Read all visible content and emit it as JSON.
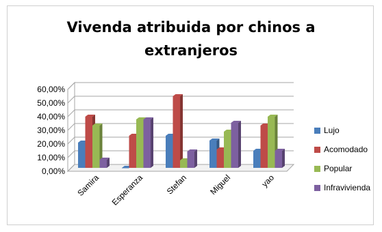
{
  "chart_data": {
    "type": "bar",
    "title_line1": "Vivenda atribuida por chinos a",
    "title_line2": "extranjeros",
    "categories": [
      "Samira",
      "Esperanza",
      "Stefan",
      "Miguel",
      "yao"
    ],
    "series": [
      {
        "name": "Lujo",
        "color": "#4a7ebb",
        "values": [
          18.5,
          0,
          23.5,
          20,
          12.5
        ]
      },
      {
        "name": "Acomodado",
        "color": "#be4b48",
        "values": [
          37.5,
          23.5,
          52.5,
          13.5,
          31
        ]
      },
      {
        "name": "Popular",
        "color": "#98b954",
        "values": [
          31,
          35.5,
          5.5,
          26.5,
          37.5
        ]
      },
      {
        "name": "Infravivienda",
        "color": "#7d60a0",
        "values": [
          6,
          35.5,
          12,
          33,
          12.5
        ]
      }
    ],
    "yticks": [
      "0,00%",
      "10,00%",
      "20,00%",
      "30,00%",
      "40,00%",
      "50,00%",
      "60,00%"
    ],
    "ylim": [
      0,
      60
    ],
    "grid": true,
    "legend_position": "right"
  }
}
